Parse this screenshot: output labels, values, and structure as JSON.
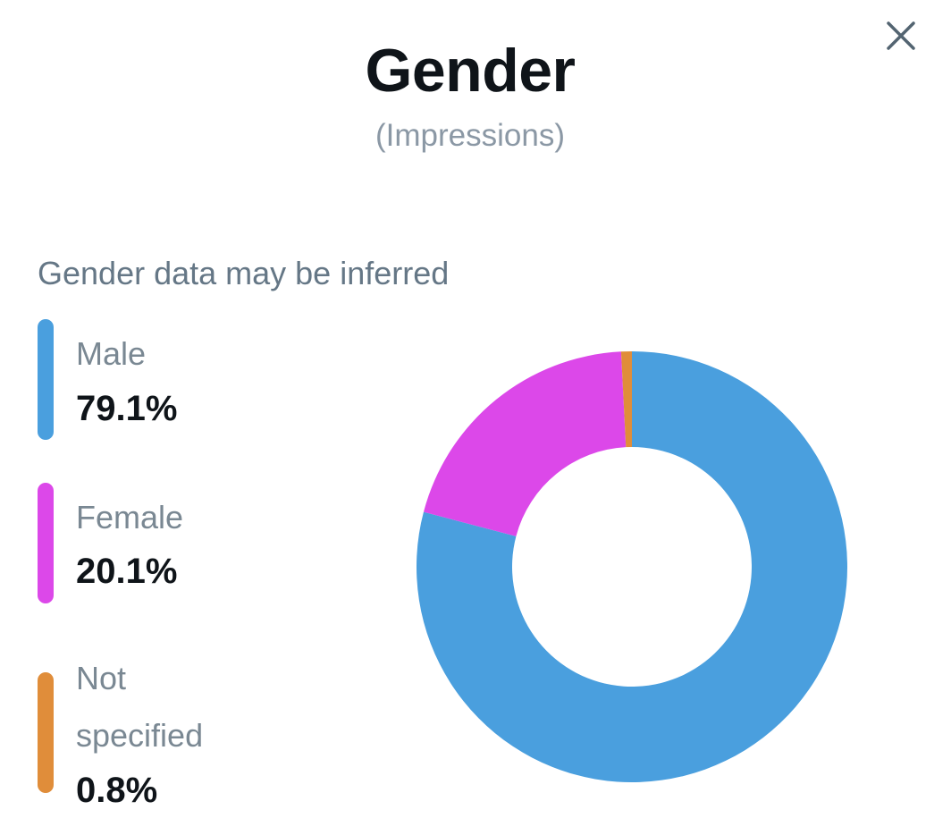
{
  "header": {
    "title": "Gender",
    "subtitle": "(Impressions)",
    "close_icon": "close-icon"
  },
  "note": "Gender data may be inferred",
  "legend": [
    {
      "label": "Male",
      "value": "79.1%",
      "color": "#4a9fde"
    },
    {
      "label": "Female",
      "value": "20.1%",
      "color": "#dc48e9"
    },
    {
      "label_line1": "Not",
      "label_line2": "specified",
      "value": "0.8%",
      "color": "#e08d3a"
    }
  ],
  "chart_data": {
    "type": "pie",
    "variant": "donut",
    "categories": [
      "Male",
      "Female",
      "Not specified"
    ],
    "values": [
      79.1,
      20.1,
      0.8
    ],
    "unit": "%",
    "colors": [
      "#4a9fde",
      "#dc48e9",
      "#e08d3a"
    ],
    "title": "Gender",
    "subtitle": "(Impressions)"
  }
}
